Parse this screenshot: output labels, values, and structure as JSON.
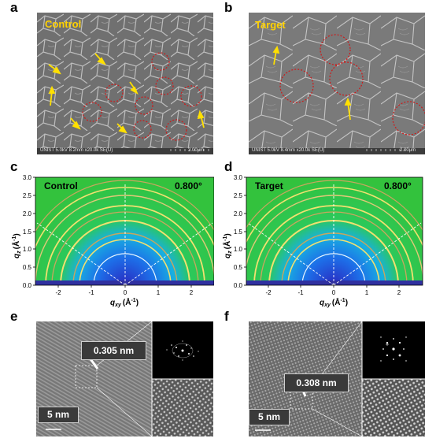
{
  "panels": {
    "a": {
      "letter": "a",
      "title": "Control",
      "footer": "UNIST 5.0kV 8.2mm x20.0k SE(U)",
      "scale": "2.00μm"
    },
    "b": {
      "letter": "b",
      "title": "Target",
      "footer": "UNIST 5.0kV 8.4mm x20.0k SE(U)",
      "scale": "2.00μm"
    },
    "c": {
      "letter": "c",
      "title": "Control",
      "angle": "0.800°"
    },
    "d": {
      "letter": "d",
      "title": "Target",
      "angle": "0.800°"
    },
    "e": {
      "letter": "e",
      "spacing": "0.305 nm",
      "scale": "5 nm"
    },
    "f": {
      "letter": "f",
      "spacing": "0.308 nm",
      "scale": "5 nm"
    }
  },
  "giwaxs_axes": {
    "y_ticks": [
      "0.0",
      "0.5",
      "1.0",
      "1.5",
      "2.0",
      "2.5",
      "3.0"
    ],
    "x_ticks": [
      "-2",
      "-1",
      "0",
      "1",
      "2"
    ],
    "ylabel_main": "q",
    "ylabel_sub": "z",
    "ylabel_unit": "(Å",
    "ylabel_exp": "-1",
    "ylabel_close": ")",
    "xlabel_main": "q",
    "xlabel_sub": "xy",
    "xlabel_unit": "(Å",
    "xlabel_exp": "-1",
    "xlabel_close": ")"
  },
  "colors": {
    "sem_title": "#ffd200",
    "arrow": "#ffe000",
    "circle": "#d01818",
    "giwaxs_bg": "#1fae3a",
    "ring": "#f2e070"
  }
}
